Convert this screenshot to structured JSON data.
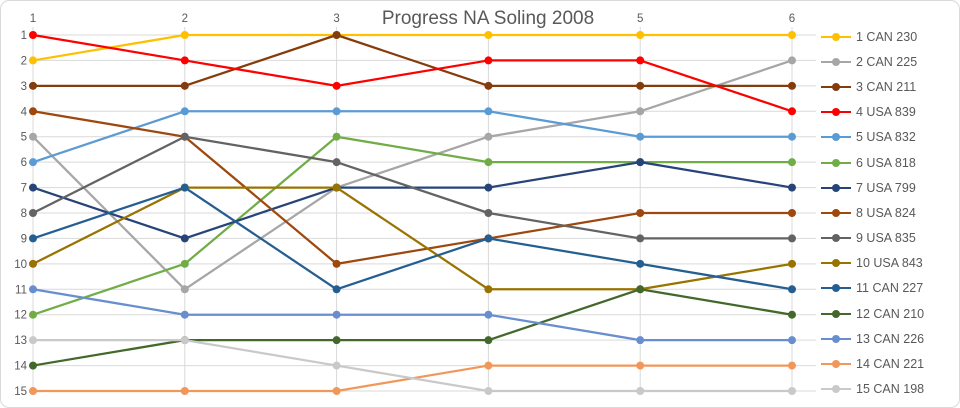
{
  "chart": {
    "title": "Progress NA Soling 2008"
  },
  "chart_data": {
    "type": "line",
    "title": "Progress NA Soling 2008",
    "x_categories": [
      "1",
      "2",
      "3",
      "4",
      "5",
      "6"
    ],
    "y_axis": {
      "tick_labels": [
        "1",
        "2",
        "3",
        "4",
        "5",
        "6",
        "7",
        "8",
        "9",
        "10",
        "11",
        "12",
        "13",
        "14",
        "15"
      ],
      "min": 1,
      "max": 15,
      "inverted": true
    },
    "grid": true,
    "legend_position": "right",
    "series": [
      {
        "name": "1 CAN 230",
        "color": "#FFC000",
        "values": [
          2,
          1,
          1,
          1,
          1,
          1
        ]
      },
      {
        "name": "2 CAN 225",
        "color": "#A6A6A6",
        "values": [
          5,
          11,
          7,
          5,
          4,
          2
        ]
      },
      {
        "name": "3 CAN 211",
        "color": "#843C0C",
        "values": [
          3,
          3,
          1,
          3,
          3,
          3
        ]
      },
      {
        "name": "4 USA 839",
        "color": "#FF0000",
        "values": [
          1,
          2,
          3,
          2,
          2,
          4
        ]
      },
      {
        "name": "5 USA 832",
        "color": "#5B9BD5",
        "values": [
          6,
          4,
          4,
          4,
          5,
          5
        ]
      },
      {
        "name": "6 USA 818",
        "color": "#70AD47",
        "values": [
          12,
          10,
          5,
          6,
          6,
          6
        ]
      },
      {
        "name": "7 USA 799",
        "color": "#264478",
        "values": [
          7,
          9,
          7,
          7,
          6,
          7
        ]
      },
      {
        "name": "8 USA 824",
        "color": "#9E480E",
        "values": [
          4,
          5,
          10,
          9,
          8,
          8
        ]
      },
      {
        "name": "9 USA 835",
        "color": "#636363",
        "values": [
          8,
          5,
          6,
          8,
          9,
          9
        ]
      },
      {
        "name": "10 USA 843",
        "color": "#997300",
        "values": [
          10,
          7,
          7,
          11,
          11,
          10
        ]
      },
      {
        "name": "11 CAN 227",
        "color": "#255E91",
        "values": [
          9,
          7,
          11,
          9,
          10,
          11
        ]
      },
      {
        "name": "12 CAN 210",
        "color": "#43682B",
        "values": [
          14,
          13,
          13,
          13,
          11,
          12
        ]
      },
      {
        "name": "13 CAN 226",
        "color": "#698ED0",
        "values": [
          11,
          12,
          12,
          12,
          13,
          13
        ]
      },
      {
        "name": "14 CAN 221",
        "color": "#F1975A",
        "values": [
          15,
          15,
          15,
          14,
          14,
          14
        ]
      },
      {
        "name": "15 CAN 198",
        "color": "#C9C9C9",
        "values": [
          13,
          13,
          14,
          15,
          15,
          15
        ]
      }
    ],
    "colors": {
      "gridline": "#D9D9D9",
      "axis_text": "#595959",
      "title_text": "#595959",
      "background": "#FFFFFF",
      "frame_border": "#D9D9D9"
    }
  }
}
